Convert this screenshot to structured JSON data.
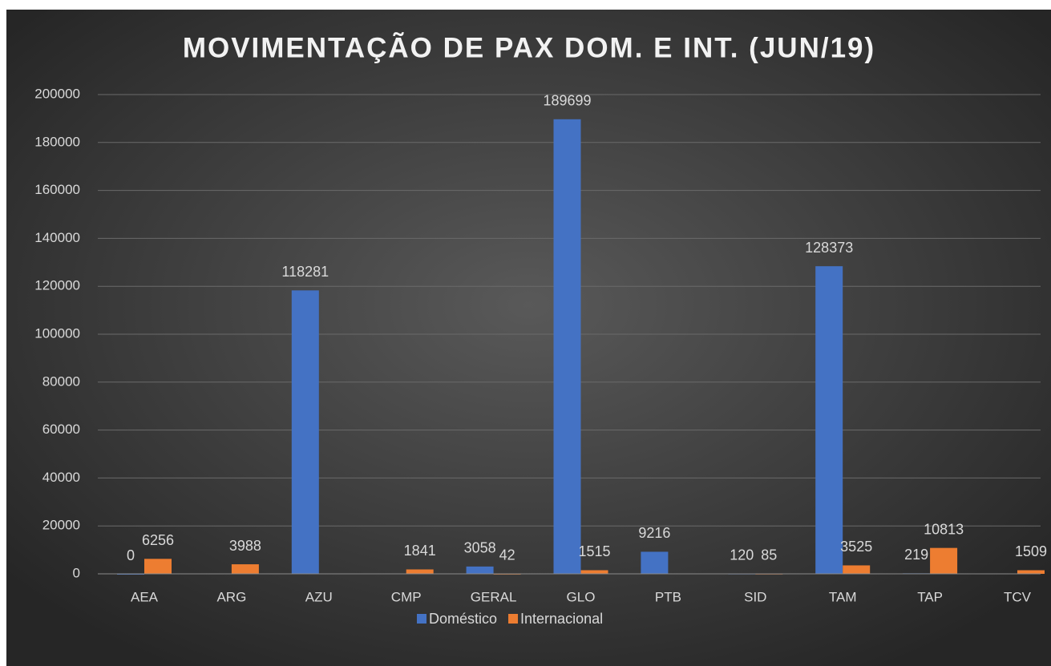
{
  "chart_data": {
    "type": "bar",
    "title": "MOVIMENTAÇÃO DE PAX DOM. E INT. (JUN/19)",
    "categories": [
      "AEA",
      "ARG",
      "AZU",
      "CMP",
      "GERAL",
      "GLO",
      "PTB",
      "SID",
      "TAM",
      "TAP",
      "TCV"
    ],
    "series": [
      {
        "name": "Doméstico",
        "color": "#4472c4",
        "values": [
          0,
          null,
          118281,
          null,
          3058,
          189699,
          9216,
          120,
          128373,
          219,
          null
        ]
      },
      {
        "name": "Internacional",
        "color": "#ed7d31",
        "values": [
          6256,
          3988,
          null,
          1841,
          42,
          1515,
          null,
          85,
          3525,
          10813,
          1509
        ]
      }
    ],
    "ylim": [
      0,
      200000
    ],
    "yticks": [
      0,
      20000,
      40000,
      60000,
      80000,
      100000,
      120000,
      140000,
      160000,
      180000,
      200000
    ],
    "grid": true,
    "legend": "bottom"
  }
}
